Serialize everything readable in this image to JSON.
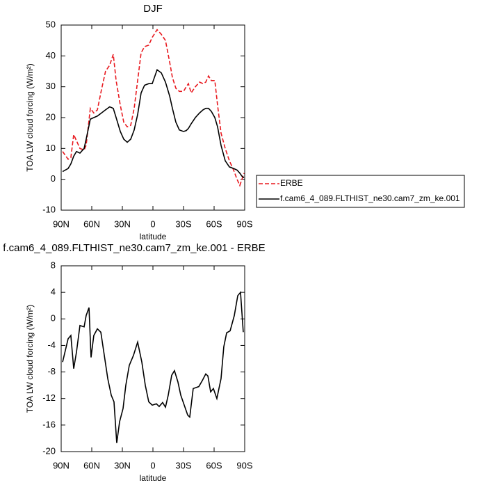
{
  "chart_data": [
    {
      "type": "line",
      "title": "DJF",
      "x_label": "latitude",
      "y_label": "TOA LW cloud forcing (W/m²)",
      "x": [
        88.6,
        83.2,
        80.5,
        77.7,
        75.0,
        71.6,
        67.5,
        65.5,
        61.4,
        58.0,
        54.5,
        50.5,
        46.5,
        42.4,
        38.9,
        36.1,
        32.0,
        28.6,
        25.2,
        21.8,
        18.4,
        15.0,
        11.6,
        8.2,
        4.1,
        0.7,
        -4.1,
        -8.2,
        -12.3,
        -16.4,
        -19.1,
        -22.5,
        -25.9,
        -30.0,
        -32.7,
        -34.8,
        -37.5,
        -41.6,
        -45.7,
        -49.1,
        -51.8,
        -54.5,
        -57.3,
        -60.7,
        -63.4,
        -66.8,
        -70.9,
        -75.0,
        -79.1,
        -82.5,
        -85.2,
        -87.3,
        -89.3
      ],
      "series": [
        {
          "name": "ERBE",
          "color": "#e8191f",
          "line_style": "dashed",
          "values": [
            9,
            6.5,
            7,
            14.5,
            12.5,
            10,
            9.5,
            11,
            23,
            21.5,
            22.5,
            29,
            35,
            37,
            40.5,
            32,
            24,
            18.5,
            17,
            17.5,
            23,
            32,
            41,
            43,
            43.5,
            46,
            48.5,
            47,
            45,
            38,
            33,
            29.5,
            28.5,
            28.5,
            30,
            31,
            28,
            30,
            31.5,
            31,
            31.5,
            33.5,
            32,
            32,
            24,
            15,
            10,
            6,
            3,
            0,
            -2,
            0,
            2
          ]
        },
        {
          "name": "f.cam6_4_089.FLTHIST_ne30.cam7_zm_ke.001",
          "color": "#000000",
          "line_style": "solid",
          "values": [
            2.5,
            3.5,
            5,
            7.5,
            9,
            8.5,
            10,
            13,
            19.5,
            20,
            20.5,
            21.5,
            22.5,
            23.5,
            23,
            20,
            15.5,
            13,
            12,
            13,
            16,
            21,
            28,
            30.5,
            31,
            31,
            35.5,
            34.5,
            31.5,
            27,
            23,
            18.5,
            16,
            15.5,
            15.8,
            16.5,
            18,
            20,
            21.5,
            22.5,
            23,
            23,
            22,
            20,
            17,
            11,
            6,
            4,
            3.5,
            3,
            2,
            1,
            0.5
          ]
        }
      ],
      "xlim": [
        90,
        -90
      ],
      "xticks": [
        {
          "value": 90,
          "label": "90N"
        },
        {
          "value": 60,
          "label": "60N"
        },
        {
          "value": 30,
          "label": "30N"
        },
        0,
        {
          "value": -30,
          "label": "30S"
        },
        {
          "value": -60,
          "label": "60S"
        },
        {
          "value": -90,
          "label": "90S"
        }
      ],
      "ylim": [
        -10,
        50
      ],
      "yticks": [
        -10,
        0,
        10,
        20,
        30,
        40,
        50
      ],
      "legend": "right"
    },
    {
      "type": "line",
      "title": "f.cam6_4_089.FLTHIST_ne30.cam7_zm_ke.001 - ERBE",
      "x_label": "latitude",
      "y_label": "TOA LW cloud forcing (W/m²)",
      "x": [
        88.6,
        83.2,
        80.5,
        77.7,
        75.0,
        71.6,
        67.5,
        65.5,
        62.7,
        60.7,
        58.0,
        54.5,
        51.1,
        47.7,
        44.3,
        40.9,
        38.2,
        35.5,
        32.7,
        29.3,
        26.6,
        23.2,
        19.1,
        15.0,
        10.9,
        7.5,
        4.1,
        0.7,
        -3.4,
        -6.1,
        -9.5,
        -12.3,
        -15.0,
        -18.4,
        -21.1,
        -24.5,
        -27.3,
        -30.7,
        -34.1,
        -36.1,
        -39.5,
        -45.0,
        -48.4,
        -51.8,
        -53.9,
        -56.6,
        -59.3,
        -62.7,
        -66.8,
        -69.5,
        -72.3,
        -75.7,
        -79.8,
        -83.2,
        -85.9,
        -88.6
      ],
      "series": [
        {
          "color": "#000000",
          "line_style": "solid",
          "values": [
            -6.5,
            -3,
            -2.5,
            -7.5,
            -5,
            -1,
            -1.2,
            0.5,
            1.7,
            -5.8,
            -2.5,
            -1.5,
            -2,
            -5.5,
            -9,
            -11.5,
            -12.5,
            -18.7,
            -15.5,
            -13.5,
            -10,
            -7,
            -5.5,
            -3.5,
            -6.5,
            -10,
            -12.5,
            -13,
            -12.8,
            -13.2,
            -12.6,
            -13.3,
            -11.5,
            -8.5,
            -7.8,
            -9.5,
            -11.5,
            -13,
            -14.5,
            -14.8,
            -10.5,
            -10.2,
            -9.3,
            -8.3,
            -8.6,
            -11,
            -10.5,
            -12,
            -9,
            -4.2,
            -2.1,
            -1.8,
            0.5,
            3.5,
            4,
            -2
          ]
        }
      ],
      "xlim": [
        90,
        -90
      ],
      "xticks": [
        {
          "value": 90,
          "label": "90N"
        },
        {
          "value": 60,
          "label": "60N"
        },
        {
          "value": 30,
          "label": "30N"
        },
        0,
        {
          "value": -30,
          "label": "30S"
        },
        {
          "value": -60,
          "label": "60S"
        },
        {
          "value": -90,
          "label": "90S"
        }
      ],
      "ylim": [
        -20,
        8
      ],
      "yticks": [
        -20,
        -16,
        -12,
        -8,
        -4,
        0,
        4,
        8
      ]
    }
  ]
}
